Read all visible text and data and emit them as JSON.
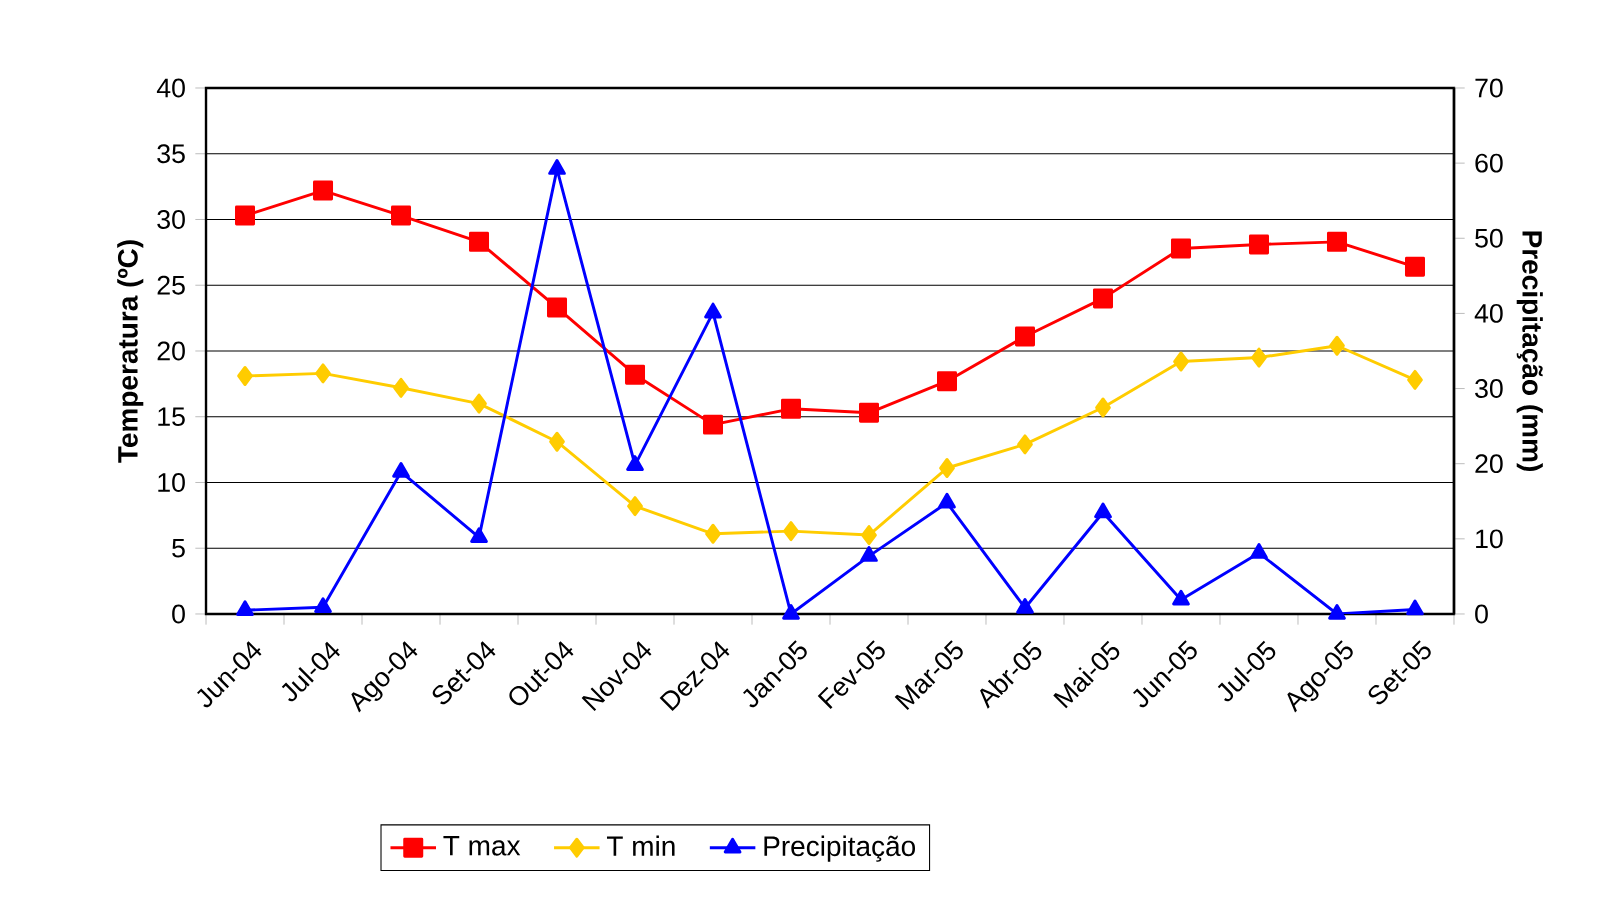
{
  "chart_data": {
    "type": "line",
    "categories": [
      "Jun-04",
      "Jul-04",
      "Ago-04",
      "Set-04",
      "Out-04",
      "Nov-04",
      "Dez-04",
      "Jan-05",
      "Fev-05",
      "Mar-05",
      "Abr-05",
      "Mai-05",
      "Jun-05",
      "Jul-05",
      "Ago-05",
      "Set-05"
    ],
    "series": [
      {
        "name": "T max",
        "color": "#ff0000",
        "marker": "square",
        "values": [
          30.3,
          32.2,
          30.3,
          28.3,
          23.3,
          18.2,
          14.4,
          15.6,
          15.3,
          17.7,
          21.1,
          24.0,
          27.8,
          28.1,
          28.3,
          26.4
        ]
      },
      {
        "name": "T min",
        "color": "#ffcc00",
        "marker": "diamond",
        "values": [
          18.1,
          18.3,
          17.2,
          16.0,
          13.1,
          8.2,
          6.1,
          6.3,
          6.0,
          11.1,
          12.9,
          15.7,
          19.2,
          19.5,
          20.4,
          17.8
        ]
      },
      {
        "name": "Precipitação",
        "color": "#0000ff",
        "marker": "triangle",
        "axis": "y2",
        "values": [
          0.5,
          0.9,
          18.9,
          10.2,
          59.2,
          19.8,
          40.1,
          0,
          7.7,
          14.8,
          0.8,
          13.5,
          1.9,
          8.1,
          0,
          0.6
        ]
      }
    ],
    "ylabel": "Temperatura (ºC)",
    "y2label": "Precipitação (mm)",
    "ylim": [
      0,
      40
    ],
    "yticks": [
      0,
      5,
      10,
      15,
      20,
      25,
      30,
      35,
      40
    ],
    "y2lim": [
      0,
      70
    ],
    "y2ticks": [
      0,
      10,
      20,
      30,
      40,
      50,
      60,
      70
    ],
    "grid": "y",
    "legend": "bottom",
    "line_style": "solid"
  }
}
